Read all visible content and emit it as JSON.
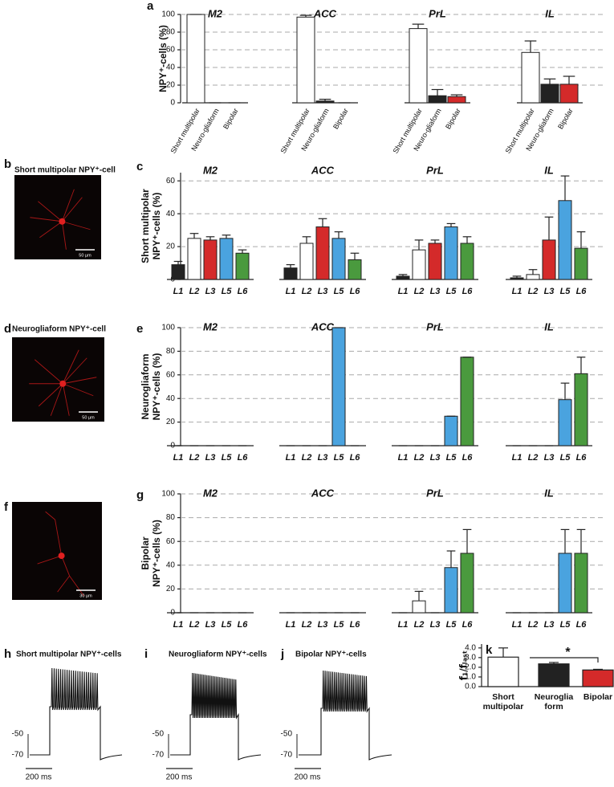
{
  "chart_data": [
    {
      "type": "bar",
      "label": "a",
      "ylabel": [
        "NPY⁺-cells (%)"
      ],
      "groups": [
        "M2",
        "ACC",
        "PrL",
        "IL"
      ],
      "series": [
        {
          "name": "Short multipolar",
          "color": "#ffffff",
          "values": [
            100,
            97,
            84,
            57
          ],
          "errors": [
            0,
            2,
            5,
            13
          ]
        },
        {
          "name": "Neuro-gliaform",
          "color": "#222222",
          "values": [
            0,
            2,
            8,
            21
          ],
          "errors": [
            0,
            2,
            7,
            6
          ]
        },
        {
          "name": "Bipolar",
          "color": "#d42a2a",
          "values": [
            0,
            0,
            7,
            21
          ],
          "errors": [
            0,
            0,
            2,
            9
          ]
        }
      ],
      "ylim": [
        0,
        100
      ],
      "yticks": [
        0,
        20,
        40,
        60,
        80,
        100
      ],
      "grid": true
    },
    {
      "type": "bar",
      "label": "c",
      "ylabel": [
        "Short multipolar",
        "NPY⁺-cells (%)"
      ],
      "groups": [
        "M2",
        "ACC",
        "PrL",
        "IL"
      ],
      "series": [
        {
          "name": "L1",
          "color": "#222222",
          "values": [
            9,
            7,
            2,
            1
          ],
          "errors": [
            2,
            2,
            1,
            1
          ]
        },
        {
          "name": "L2",
          "color": "#ffffff",
          "values": [
            25,
            22,
            18,
            3
          ],
          "errors": [
            3,
            4,
            6,
            3
          ]
        },
        {
          "name": "L3",
          "color": "#d42a2a",
          "values": [
            24,
            32,
            22,
            24
          ],
          "errors": [
            2,
            5,
            2,
            14
          ]
        },
        {
          "name": "L5",
          "color": "#4aa3df",
          "values": [
            25,
            25,
            32,
            48
          ],
          "errors": [
            2,
            4,
            2,
            15
          ]
        },
        {
          "name": "L6",
          "color": "#4a9a3e",
          "values": [
            16,
            12,
            22,
            19
          ],
          "errors": [
            2,
            4,
            4,
            10
          ]
        }
      ],
      "ylim": [
        0,
        65
      ],
      "yticks": [
        0,
        20,
        40,
        60
      ],
      "grid": true
    },
    {
      "type": "bar",
      "label": "e",
      "ylabel": [
        "Neurogliaform",
        "NPY⁺-cells (%)"
      ],
      "groups": [
        "M2",
        "ACC",
        "PrL",
        "IL"
      ],
      "series": [
        {
          "name": "L1",
          "color": "#222222",
          "values": [
            0,
            0,
            0,
            0
          ],
          "errors": [
            0,
            0,
            0,
            0
          ]
        },
        {
          "name": "L2",
          "color": "#ffffff",
          "values": [
            0,
            0,
            0,
            0
          ],
          "errors": [
            0,
            0,
            0,
            0
          ]
        },
        {
          "name": "L3",
          "color": "#d42a2a",
          "values": [
            0,
            0,
            0,
            0
          ],
          "errors": [
            0,
            0,
            0,
            0
          ]
        },
        {
          "name": "L5",
          "color": "#4aa3df",
          "values": [
            0,
            100,
            25,
            39
          ],
          "errors": [
            0,
            0,
            0,
            14
          ]
        },
        {
          "name": "L6",
          "color": "#4a9a3e",
          "values": [
            0,
            0,
            75,
            61
          ],
          "errors": [
            0,
            0,
            0,
            14
          ]
        }
      ],
      "ylim": [
        0,
        100
      ],
      "yticks": [
        0,
        20,
        40,
        60,
        80,
        100
      ],
      "grid": true
    },
    {
      "type": "bar",
      "label": "g",
      "ylabel": [
        "Bipolar",
        "NPY⁺-cells (%)"
      ],
      "groups": [
        "M2",
        "ACC",
        "PrL",
        "IL"
      ],
      "series": [
        {
          "name": "L1",
          "color": "#222222",
          "values": [
            0,
            0,
            0,
            0
          ],
          "errors": [
            0,
            0,
            0,
            0
          ]
        },
        {
          "name": "L2",
          "color": "#ffffff",
          "values": [
            0,
            0,
            10,
            0
          ],
          "errors": [
            0,
            0,
            8,
            0
          ]
        },
        {
          "name": "L3",
          "color": "#d42a2a",
          "values": [
            0,
            0,
            0,
            0
          ],
          "errors": [
            0,
            0,
            0,
            0
          ]
        },
        {
          "name": "L5",
          "color": "#4aa3df",
          "values": [
            0,
            0,
            38,
            50
          ],
          "errors": [
            0,
            0,
            14,
            20
          ]
        },
        {
          "name": "L6",
          "color": "#4a9a3e",
          "values": [
            0,
            0,
            50,
            50
          ],
          "errors": [
            0,
            0,
            20,
            20
          ]
        }
      ],
      "ylim": [
        0,
        100
      ],
      "yticks": [
        0,
        20,
        40,
        60,
        80,
        100
      ],
      "grid": true
    },
    {
      "type": "bar",
      "label": "k",
      "ylabel": "f₁/fₗₐₛₜ",
      "categories": [
        [
          "Short",
          "multipolar"
        ],
        [
          "Neuroglia",
          "form"
        ],
        [
          "Bipolar"
        ]
      ],
      "values": [
        3.05,
        2.35,
        1.72
      ],
      "errors": [
        0.95,
        0.15,
        0.07
      ],
      "colors": [
        "#ffffff",
        "#222222",
        "#d42a2a"
      ],
      "annotation": "*",
      "ylim": [
        0,
        4.4
      ],
      "yticks": [
        {
          "value": 0,
          "label": "0.0"
        },
        {
          "value": 1,
          "label": "1.0"
        },
        {
          "value": 2,
          "label": "2.0"
        },
        {
          "value": 3,
          "label": "3.0"
        },
        {
          "value": 4,
          "label": "4.0"
        }
      ],
      "grid": false
    }
  ],
  "images": [
    {
      "label": "b",
      "title": "Short multipolar NPY⁺-cell",
      "scale": "50 µm"
    },
    {
      "label": "d",
      "title": "Neurogliaform NPY⁺-cell",
      "scale": "50 µm"
    },
    {
      "label": "f",
      "title": "Bipolar NPY⁺-cell",
      "scale": "30 µm"
    }
  ],
  "traces": [
    {
      "label": "h",
      "title": "Short multipolar NPY⁺-cells",
      "y_labels": [
        "-50",
        "-70"
      ],
      "time_scale": "200 ms"
    },
    {
      "label": "i",
      "title": "Neurogliaform NPY⁺-cells",
      "y_labels": [
        "-50",
        "-70"
      ],
      "time_scale": "200 ms"
    },
    {
      "label": "j",
      "title": "Bipolar NPY⁺-cells",
      "y_labels": [
        "-50",
        "-70"
      ],
      "time_scale": "200 ms"
    }
  ]
}
